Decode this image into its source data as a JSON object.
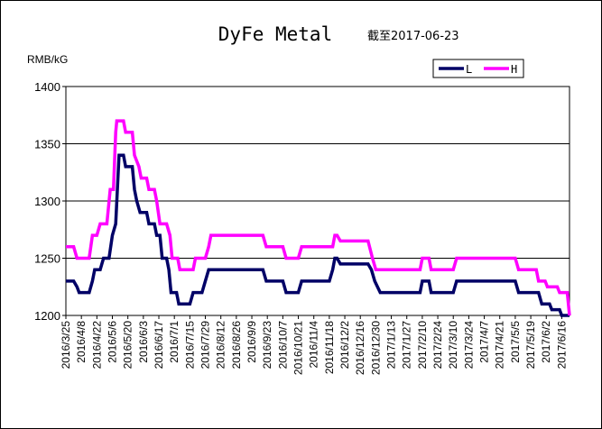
{
  "chart_data": {
    "type": "line",
    "title": "DyFe Metal",
    "subtitle": "截至2017-06-23",
    "y_unit_label": "RMB/kG",
    "xlabel": "",
    "ylabel": "",
    "ylim": [
      1200,
      1400
    ],
    "y_ticks": [
      1200,
      1250,
      1300,
      1350,
      1400
    ],
    "grid": "horizontal",
    "legend_position": "top-right",
    "x_tick_labels": [
      "2016/3/25",
      "2016/4/8",
      "2016/4/22",
      "2016/5/6",
      "2016/5/20",
      "2016/6/3",
      "2016/6/17",
      "2016/7/1",
      "2016/7/15",
      "2016/7/29",
      "2016/8/12",
      "2016/8/26",
      "2016/9/9",
      "2016/9/23",
      "2016/10/7",
      "2016/10/21",
      "2016/11/4",
      "2016/11/18",
      "2016/12/2",
      "2016/12/16",
      "2016/12/30",
      "2017/1/13",
      "2017/1/27",
      "2017/2/10",
      "2017/2/24",
      "2017/3/10",
      "2017/3/24",
      "2017/4/7",
      "2017/4/21",
      "2017/5/5",
      "2017/5/19",
      "2017/6/2",
      "2017/6/16"
    ],
    "series": [
      {
        "name": "L",
        "color": "#000066",
        "points": [
          [
            "2016/3/25",
            1230
          ],
          [
            "2016/4/1",
            1230
          ],
          [
            "2016/4/4",
            1225
          ],
          [
            "2016/4/6",
            1220
          ],
          [
            "2016/4/15",
            1220
          ],
          [
            "2016/4/18",
            1230
          ],
          [
            "2016/4/20",
            1240
          ],
          [
            "2016/4/25",
            1240
          ],
          [
            "2016/4/28",
            1250
          ],
          [
            "2016/5/3",
            1250
          ],
          [
            "2016/5/6",
            1270
          ],
          [
            "2016/5/9",
            1280
          ],
          [
            "2016/5/12",
            1340
          ],
          [
            "2016/5/16",
            1340
          ],
          [
            "2016/5/18",
            1330
          ],
          [
            "2016/5/24",
            1330
          ],
          [
            "2016/5/26",
            1310
          ],
          [
            "2016/5/28",
            1300
          ],
          [
            "2016/5/31",
            1290
          ],
          [
            "2016/6/6",
            1290
          ],
          [
            "2016/6/8",
            1280
          ],
          [
            "2016/6/13",
            1280
          ],
          [
            "2016/6/15",
            1270
          ],
          [
            "2016/6/18",
            1270
          ],
          [
            "2016/6/20",
            1250
          ],
          [
            "2016/6/24",
            1250
          ],
          [
            "2016/6/26",
            1240
          ],
          [
            "2016/6/28",
            1220
          ],
          [
            "2016/7/3",
            1220
          ],
          [
            "2016/7/5",
            1210
          ],
          [
            "2016/7/15",
            1210
          ],
          [
            "2016/7/18",
            1220
          ],
          [
            "2016/7/26",
            1220
          ],
          [
            "2016/7/29",
            1230
          ],
          [
            "2016/8/1",
            1240
          ],
          [
            "2016/9/19",
            1240
          ],
          [
            "2016/9/22",
            1230
          ],
          [
            "2016/10/7",
            1230
          ],
          [
            "2016/10/10",
            1220
          ],
          [
            "2016/10/21",
            1220
          ],
          [
            "2016/10/24",
            1230
          ],
          [
            "2016/11/18",
            1230
          ],
          [
            "2016/11/21",
            1240
          ],
          [
            "2016/11/23",
            1250
          ],
          [
            "2016/11/25",
            1250
          ],
          [
            "2016/11/28",
            1245
          ],
          [
            "2016/12/23",
            1245
          ],
          [
            "2016/12/26",
            1240
          ],
          [
            "2016/12/29",
            1230
          ],
          [
            "2017/1/3",
            1220
          ],
          [
            "2017/2/8",
            1220
          ],
          [
            "2017/2/10",
            1230
          ],
          [
            "2017/2/16",
            1230
          ],
          [
            "2017/2/18",
            1220
          ],
          [
            "2017/3/10",
            1220
          ],
          [
            "2017/3/13",
            1230
          ],
          [
            "2017/5/5",
            1230
          ],
          [
            "2017/5/8",
            1220
          ],
          [
            "2017/5/26",
            1220
          ],
          [
            "2017/5/29",
            1210
          ],
          [
            "2017/6/5",
            1210
          ],
          [
            "2017/6/7",
            1205
          ],
          [
            "2017/6/14",
            1205
          ],
          [
            "2017/6/16",
            1200
          ],
          [
            "2017/6/23",
            1200
          ]
        ]
      },
      {
        "name": "H",
        "color": "#ff00ff",
        "points": [
          [
            "2016/3/25",
            1260
          ],
          [
            "2016/4/1",
            1260
          ],
          [
            "2016/4/4",
            1250
          ],
          [
            "2016/4/15",
            1250
          ],
          [
            "2016/4/18",
            1270
          ],
          [
            "2016/4/22",
            1270
          ],
          [
            "2016/4/25",
            1280
          ],
          [
            "2016/5/1",
            1280
          ],
          [
            "2016/5/4",
            1310
          ],
          [
            "2016/5/7",
            1310
          ],
          [
            "2016/5/9",
            1360
          ],
          [
            "2016/5/10",
            1370
          ],
          [
            "2016/5/16",
            1370
          ],
          [
            "2016/5/18",
            1360
          ],
          [
            "2016/5/24",
            1360
          ],
          [
            "2016/5/26",
            1340
          ],
          [
            "2016/5/30",
            1330
          ],
          [
            "2016/6/1",
            1320
          ],
          [
            "2016/6/6",
            1320
          ],
          [
            "2016/6/8",
            1310
          ],
          [
            "2016/6/13",
            1310
          ],
          [
            "2016/6/15",
            1300
          ],
          [
            "2016/6/18",
            1280
          ],
          [
            "2016/6/24",
            1280
          ],
          [
            "2016/6/27",
            1270
          ],
          [
            "2016/6/29",
            1250
          ],
          [
            "2016/7/4",
            1250
          ],
          [
            "2016/7/6",
            1240
          ],
          [
            "2016/7/18",
            1240
          ],
          [
            "2016/7/20",
            1250
          ],
          [
            "2016/7/29",
            1250
          ],
          [
            "2016/8/1",
            1260
          ],
          [
            "2016/8/3",
            1270
          ],
          [
            "2016/9/19",
            1270
          ],
          [
            "2016/9/22",
            1260
          ],
          [
            "2016/10/7",
            1260
          ],
          [
            "2016/10/10",
            1250
          ],
          [
            "2016/10/21",
            1250
          ],
          [
            "2016/10/24",
            1260
          ],
          [
            "2016/11/21",
            1260
          ],
          [
            "2016/11/23",
            1270
          ],
          [
            "2016/11/25",
            1270
          ],
          [
            "2016/11/28",
            1265
          ],
          [
            "2016/12/23",
            1265
          ],
          [
            "2016/12/27",
            1250
          ],
          [
            "2016/12/30",
            1240
          ],
          [
            "2017/2/8",
            1240
          ],
          [
            "2017/2/10",
            1250
          ],
          [
            "2017/2/16",
            1250
          ],
          [
            "2017/2/18",
            1240
          ],
          [
            "2017/3/10",
            1240
          ],
          [
            "2017/3/13",
            1250
          ],
          [
            "2017/5/5",
            1250
          ],
          [
            "2017/5/8",
            1240
          ],
          [
            "2017/5/24",
            1240
          ],
          [
            "2017/5/26",
            1230
          ],
          [
            "2017/6/1",
            1230
          ],
          [
            "2017/6/3",
            1225
          ],
          [
            "2017/6/12",
            1225
          ],
          [
            "2017/6/14",
            1220
          ],
          [
            "2017/6/21",
            1220
          ],
          [
            "2017/6/23",
            1200
          ]
        ]
      }
    ]
  }
}
